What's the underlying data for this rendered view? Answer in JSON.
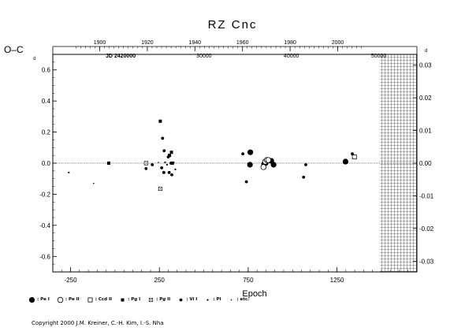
{
  "chart_data": {
    "type": "scatter",
    "title": "RZ Cnc",
    "xlabel": "Epoch",
    "ylabel": "O–C",
    "ylabel_superscript": "d",
    "jd_label": "JD 2420000",
    "xlim": [
      -350,
      1700
    ],
    "ylim": [
      -0.7,
      0.7
    ],
    "y2lim": [
      -0.0333,
      0.0333
    ],
    "x_ticks": [
      -250,
      250,
      750,
      1250
    ],
    "x_tick_labels": [
      "-250",
      "250",
      "750",
      "1250"
    ],
    "y_ticks": [
      -0.6,
      -0.4,
      -0.2,
      0.0,
      0.2,
      0.4,
      0.6
    ],
    "y_tick_labels": [
      "-0.6",
      "-0.4",
      "-0.2",
      "0.0",
      "0.2",
      "0.4",
      "0.6"
    ],
    "y2_ticks": [
      -0.03,
      -0.02,
      -0.01,
      0.0,
      0.01,
      0.02,
      0.03
    ],
    "y2_tick_labels": [
      "-0.03",
      "-0.02",
      "-0.01",
      "0.00",
      "0.01",
      "0.02",
      "0.03"
    ],
    "top_year_ticks": [
      1900,
      1920,
      1940,
      1960,
      1980,
      2000
    ],
    "top_year_epochs": [
      -86,
      182,
      450,
      718,
      986,
      1254
    ],
    "top_year_labels": [
      "1900",
      "1920",
      "1940",
      "1960",
      "1980",
      "2000"
    ],
    "top_jd_labels": [
      {
        "epoch": 501,
        "text": "30000"
      },
      {
        "epoch": 993,
        "text": "40000"
      },
      {
        "epoch": 1485,
        "text": "50000"
      }
    ],
    "hatched_from_epoch": 1492,
    "zero_line": true,
    "legend": [
      {
        "symbol": "filled-circle-large",
        "label": ": Pe I"
      },
      {
        "symbol": "open-circle",
        "label": ": Pe II"
      },
      {
        "symbol": "open-square-small",
        "label": ": Ccd II"
      },
      {
        "symbol": "filled-square",
        "label": ": Pg I"
      },
      {
        "symbol": "open-square-dot",
        "label": ": Pg II"
      },
      {
        "symbol": "filled-circle-medium",
        "label": ": Vi I"
      },
      {
        "symbol": "dot",
        "label": ": Pl"
      },
      {
        "symbol": "tiny-dot",
        "label": ": etc."
      }
    ],
    "series": [
      {
        "name": ": Pe I",
        "symbol": "filled-circle-large",
        "points": [
          [
            762,
            0.07
          ],
          [
            760,
            -0.01
          ],
          [
            840,
            -0.005
          ],
          [
            848,
            0.0
          ],
          [
            880,
            0.015
          ],
          [
            893,
            -0.01
          ],
          [
            1298,
            0.01
          ]
        ]
      },
      {
        "name": ": Pe II",
        "symbol": "open-circle",
        "points": [
          [
            836,
            -0.025
          ],
          [
            846,
            0.01
          ],
          [
            855,
            0.02
          ],
          [
            863,
            0.02
          ]
        ]
      },
      {
        "name": ": Ccd II",
        "symbol": "open-square-small",
        "points": [
          [
            1348,
            0.04
          ]
        ]
      },
      {
        "name": ": Pg I",
        "symbol": "filled-square",
        "points": [
          [
            -35,
            0.0
          ],
          [
            255,
            0.27
          ],
          [
            307,
            0.05
          ],
          [
            318,
            0.07
          ],
          [
            323,
            0.0
          ]
        ]
      },
      {
        "name": ": Pg II",
        "symbol": "open-square-dot",
        "points": [
          [
            175,
            0.0
          ],
          [
            255,
            -0.165
          ]
        ]
      },
      {
        "name": ": Vi I",
        "symbol": "filled-circle-medium",
        "points": [
          [
            268,
            0.16
          ],
          [
            277,
            0.08
          ],
          [
            300,
            0.04
          ],
          [
            315,
            0.0
          ],
          [
            305,
            -0.06
          ],
          [
            320,
            -0.075
          ],
          [
            275,
            -0.06
          ],
          [
            263,
            -0.03
          ],
          [
            175,
            -0.035
          ],
          [
            210,
            -0.01
          ],
          [
            720,
            0.06
          ],
          [
            740,
            -0.12
          ],
          [
            1062,
            -0.09
          ],
          [
            1074,
            -0.01
          ],
          [
            1336,
            0.06
          ]
        ]
      },
      {
        "name": ": Pl",
        "symbol": "dot",
        "points": [
          [
            -260,
            -0.06
          ],
          [
            282,
            0.005
          ],
          [
            293,
            -0.01
          ],
          [
            330,
            0.005
          ],
          [
            340,
            -0.04
          ]
        ]
      },
      {
        "name": ": etc.",
        "symbol": "tiny-dot",
        "points": [
          [
            -120,
            -0.13
          ],
          [
            245,
            0.005
          ]
        ]
      }
    ]
  },
  "copyright": "Copyright 2000 J.M. Kreiner, C.-H. Kim, I.-S. Nha"
}
